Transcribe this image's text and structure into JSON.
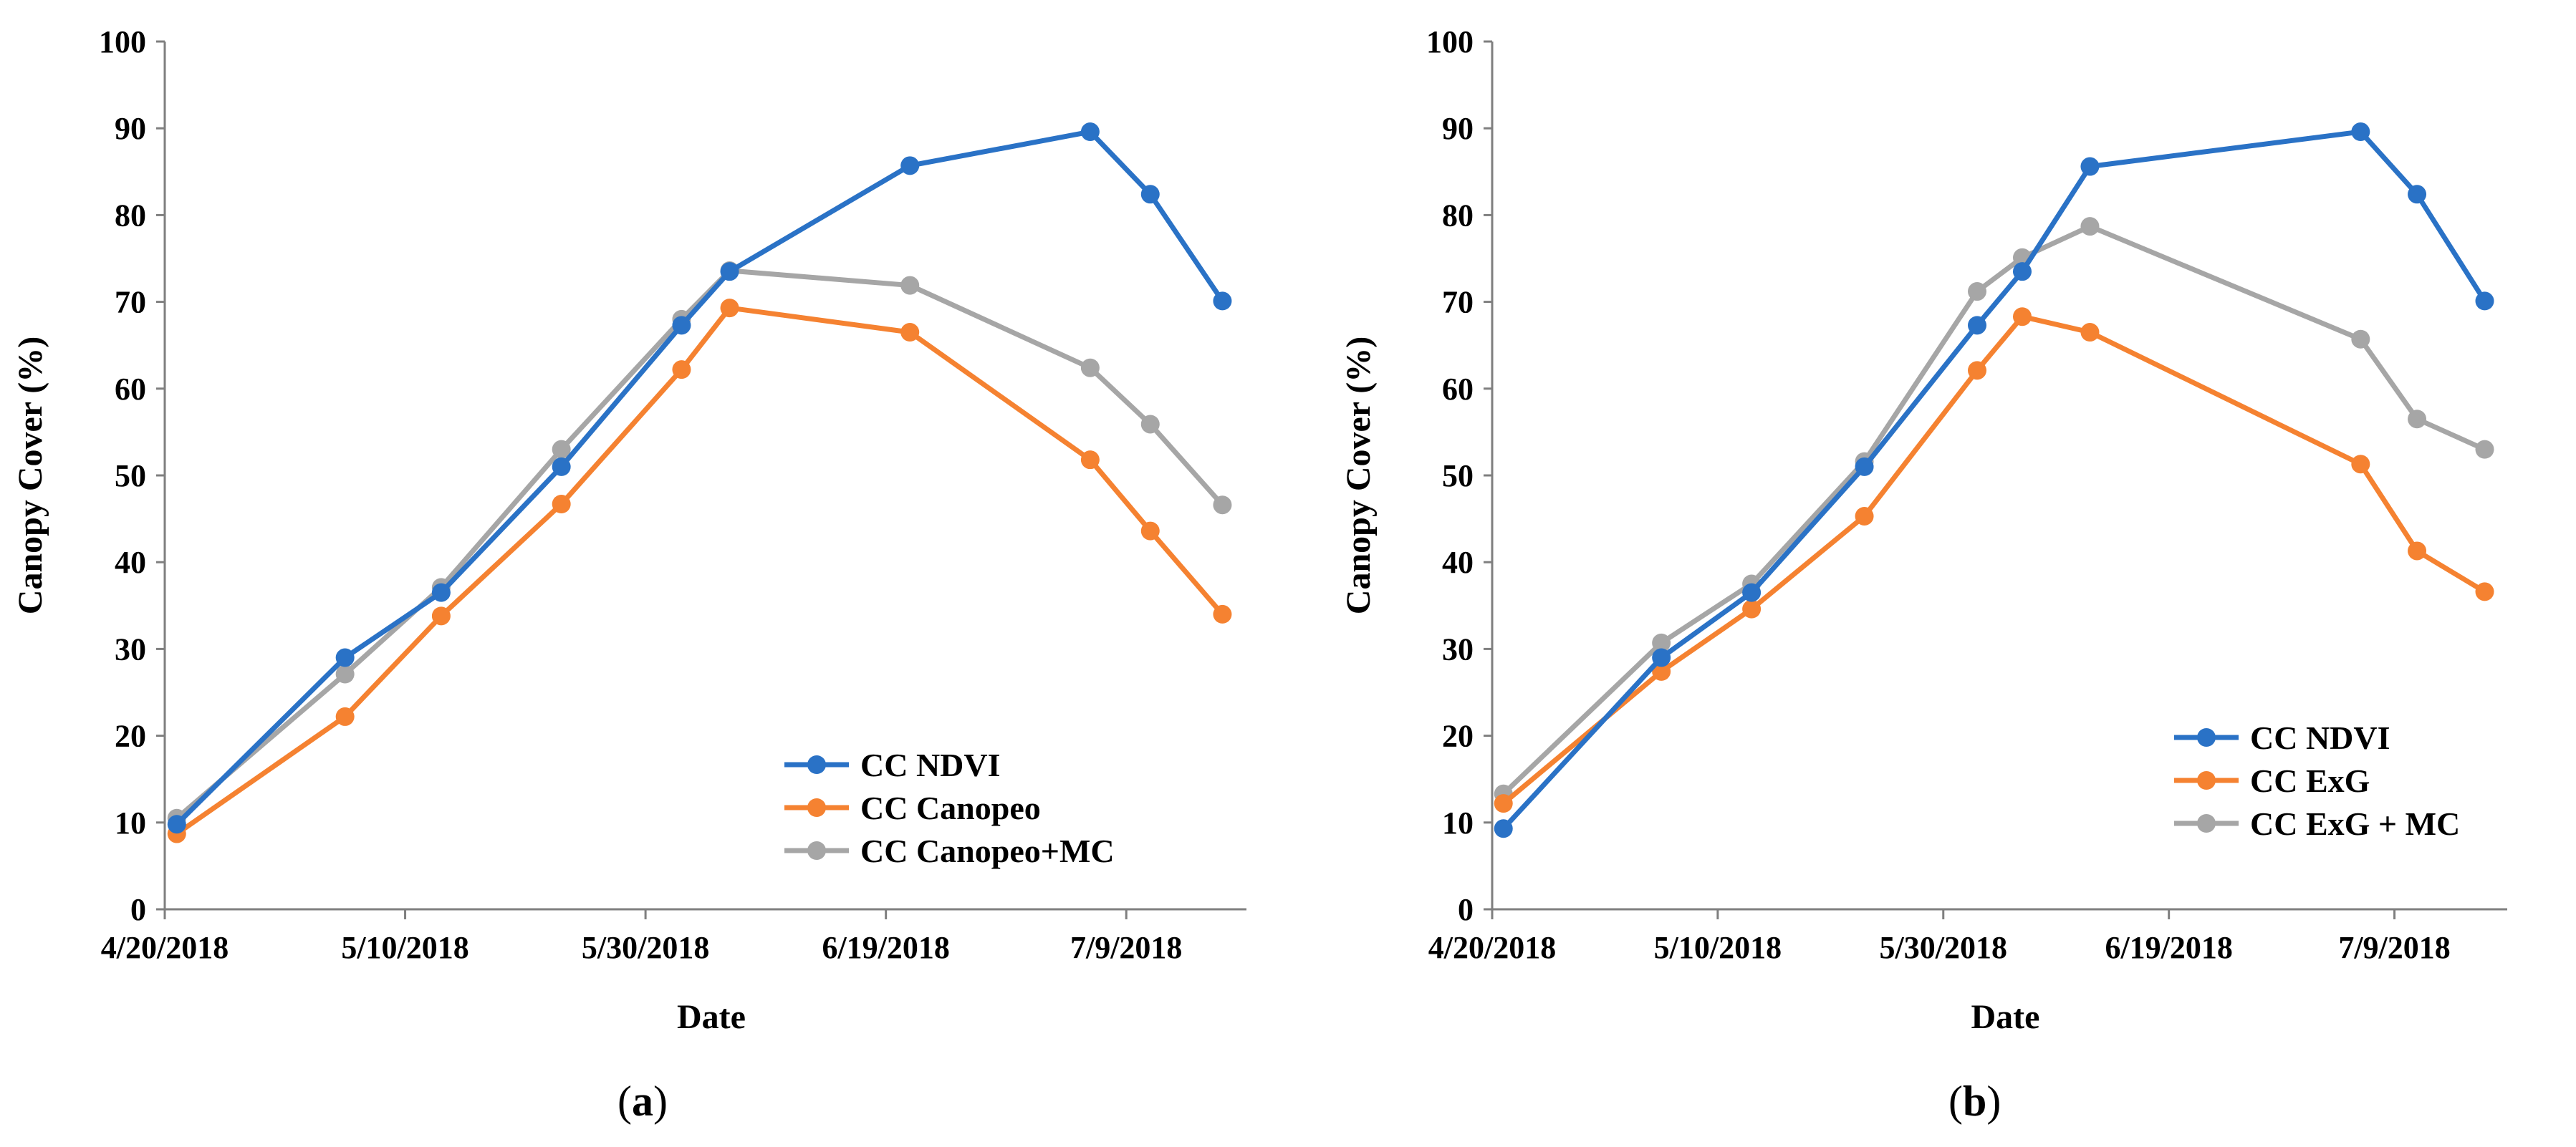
{
  "colors": {
    "ndvi": "#2A72C6",
    "orange": "#F58231",
    "gray": "#A6A6A6",
    "axis": "#7F7F7F"
  },
  "x_tick_labels": [
    "4/20/2018",
    "5/10/2018",
    "5/30/2018",
    "6/19/2018",
    "7/9/2018"
  ],
  "chart_data": [
    {
      "type": "line",
      "panel_label_prefix": "(",
      "panel_label_letter": "a",
      "panel_label_suffix": ")",
      "xlabel": "Date",
      "ylabel": "Canopy Cover (%)",
      "ylim": [
        0,
        100
      ],
      "yticks": [
        "0",
        "10",
        "20",
        "30",
        "40",
        "50",
        "60",
        "70",
        "80",
        "90",
        "100"
      ],
      "xlim": [
        "2018-04-20",
        "2018-07-19"
      ],
      "x": [
        "2018-04-21",
        "2018-05-05",
        "2018-05-13",
        "2018-05-23",
        "2018-06-02",
        "2018-06-06",
        "2018-06-21",
        "2018-07-06",
        "2018-07-11",
        "2018-07-17"
      ],
      "legend_position": "bottom-right",
      "series": [
        {
          "name": "CC NDVI",
          "color_key": "ndvi",
          "values": [
            9.8,
            29,
            36.5,
            51,
            67.3,
            73.5,
            85.7,
            89.6,
            82.4,
            70.1
          ]
        },
        {
          "name": "CC Canopeo",
          "color_key": "orange",
          "values": [
            8.7,
            22.2,
            33.8,
            46.7,
            62.2,
            69.3,
            66.5,
            51.8,
            43.6,
            34
          ]
        },
        {
          "name": "CC Canopeo+MC",
          "color_key": "gray",
          "values": [
            10.5,
            27.1,
            37.1,
            53,
            68,
            73.6,
            71.9,
            62.4,
            55.9,
            46.6
          ]
        }
      ]
    },
    {
      "type": "line",
      "panel_label_prefix": "(",
      "panel_label_letter": "b",
      "panel_label_suffix": ")",
      "xlabel": "Date",
      "ylabel": "Canopy Cover (%)",
      "ylim": [
        0,
        100
      ],
      "yticks": [
        "0",
        "10",
        "20",
        "30",
        "40",
        "50",
        "60",
        "70",
        "80",
        "90",
        "100"
      ],
      "xlim": [
        "2018-04-20",
        "2018-07-19"
      ],
      "x": [
        "2018-04-21",
        "2018-05-05",
        "2018-05-13",
        "2018-05-23",
        "2018-06-02",
        "2018-06-06",
        "2018-06-12",
        "2018-07-06",
        "2018-07-11",
        "2018-07-17"
      ],
      "legend_position": "bottom-right",
      "series": [
        {
          "name": "CC NDVI",
          "color_key": "ndvi",
          "values": [
            9.3,
            29,
            36.5,
            51,
            67.3,
            73.5,
            85.6,
            89.6,
            82.4,
            70.1
          ]
        },
        {
          "name": "CC ExG",
          "color_key": "orange",
          "values": [
            12.2,
            27.4,
            34.6,
            45.3,
            62.1,
            68.3,
            66.5,
            51.3,
            41.3,
            36.6
          ]
        },
        {
          "name": "CC ExG + MC",
          "color_key": "gray",
          "values": [
            13.3,
            30.7,
            37.5,
            51.6,
            71.2,
            75.1,
            78.7,
            65.7,
            56.5,
            53
          ]
        }
      ]
    }
  ]
}
